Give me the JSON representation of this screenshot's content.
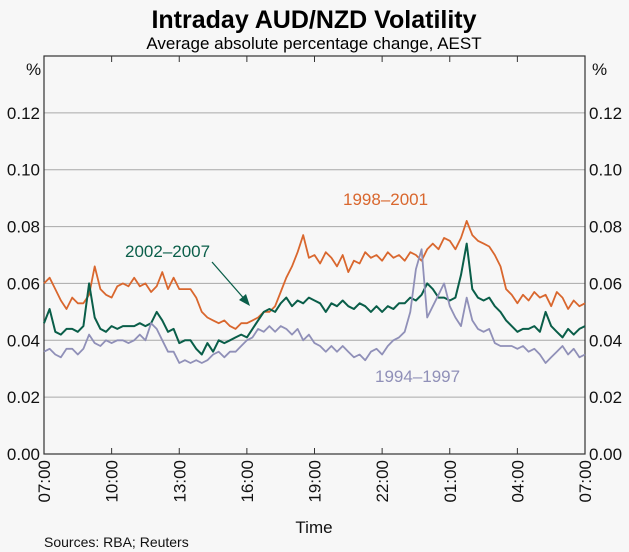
{
  "chart_data": {
    "type": "line",
    "title": "Intraday AUD/NZD Volatility",
    "subtitle": "Average absolute percentage change, AEST",
    "xlabel": "Time",
    "ylabel_left": "%",
    "ylabel_right": "%",
    "source": "Sources: RBA; Reuters",
    "ylim": [
      0,
      0.14
    ],
    "yticks": [
      "0.00",
      "0.02",
      "0.04",
      "0.06",
      "0.08",
      "0.10",
      "0.12"
    ],
    "xlim": [
      0,
      24
    ],
    "xticks": [
      "07:00",
      "10:00",
      "13:00",
      "16:00",
      "19:00",
      "22:00",
      "01:00",
      "04:00",
      "07:00"
    ],
    "grid": true,
    "colors": {
      "1998-2001": "#d9672e",
      "2002-2007": "#0a5e49",
      "1994-1997": "#9090b8",
      "grid": "#a8a8a8",
      "axis": "#333333"
    },
    "series": [
      {
        "name": "1998–2001",
        "hours": [
          0,
          0.25,
          0.5,
          0.75,
          1,
          1.25,
          1.5,
          1.75,
          2,
          2.25,
          2.5,
          2.75,
          3,
          3.25,
          3.5,
          3.75,
          4,
          4.25,
          4.5,
          4.75,
          5,
          5.25,
          5.5,
          5.75,
          6,
          6.25,
          6.5,
          6.75,
          7,
          7.25,
          7.5,
          7.75,
          8,
          8.25,
          8.5,
          8.75,
          9,
          9.25,
          9.5,
          9.75,
          10,
          10.25,
          10.5,
          10.75,
          11,
          11.25,
          11.5,
          11.75,
          12,
          12.25,
          12.5,
          12.75,
          13,
          13.25,
          13.5,
          13.75,
          14,
          14.25,
          14.5,
          14.75,
          15,
          15.25,
          15.5,
          15.75,
          16,
          16.25,
          16.5,
          16.75,
          17,
          17.25,
          17.5,
          17.75,
          18,
          18.25,
          18.5,
          18.75,
          19,
          19.25,
          19.5,
          19.75,
          20,
          20.25,
          20.5,
          20.75,
          21,
          21.25,
          21.5,
          21.75,
          22,
          22.25,
          22.5,
          22.75,
          23,
          23.25,
          23.5,
          23.75,
          24
        ],
        "values": [
          0.06,
          0.062,
          0.058,
          0.054,
          0.051,
          0.055,
          0.053,
          0.053,
          0.056,
          0.066,
          0.058,
          0.056,
          0.055,
          0.059,
          0.06,
          0.059,
          0.062,
          0.059,
          0.06,
          0.057,
          0.059,
          0.064,
          0.058,
          0.062,
          0.058,
          0.058,
          0.058,
          0.055,
          0.05,
          0.048,
          0.047,
          0.046,
          0.047,
          0.045,
          0.044,
          0.046,
          0.046,
          0.047,
          0.048,
          0.05,
          0.05,
          0.052,
          0.057,
          0.062,
          0.066,
          0.071,
          0.077,
          0.069,
          0.07,
          0.067,
          0.071,
          0.069,
          0.066,
          0.07,
          0.064,
          0.068,
          0.067,
          0.071,
          0.069,
          0.07,
          0.068,
          0.071,
          0.069,
          0.07,
          0.068,
          0.071,
          0.07,
          0.068,
          0.072,
          0.074,
          0.072,
          0.076,
          0.075,
          0.072,
          0.076,
          0.082,
          0.077,
          0.075,
          0.074,
          0.073,
          0.07,
          0.066,
          0.058,
          0.056,
          0.053,
          0.056,
          0.054,
          0.057,
          0.055,
          0.056,
          0.052,
          0.057,
          0.055,
          0.051,
          0.054,
          0.052,
          0.053
        ],
        "label_pos_hours": 15.9,
        "label_pos_value": 0.086
      },
      {
        "name": "2002–2007",
        "hours": [
          0,
          0.25,
          0.5,
          0.75,
          1,
          1.25,
          1.5,
          1.75,
          2,
          2.25,
          2.5,
          2.75,
          3,
          3.25,
          3.5,
          3.75,
          4,
          4.25,
          4.5,
          4.75,
          5,
          5.25,
          5.5,
          5.75,
          6,
          6.25,
          6.5,
          6.75,
          7,
          7.25,
          7.5,
          7.75,
          8,
          8.25,
          8.5,
          8.75,
          9,
          9.25,
          9.5,
          9.75,
          10,
          10.25,
          10.5,
          10.75,
          11,
          11.25,
          11.5,
          11.75,
          12,
          12.25,
          12.5,
          12.75,
          13,
          13.25,
          13.5,
          13.75,
          14,
          14.25,
          14.5,
          14.75,
          15,
          15.25,
          15.5,
          15.75,
          16,
          16.25,
          16.5,
          16.75,
          17,
          17.25,
          17.5,
          17.75,
          18,
          18.25,
          18.5,
          18.75,
          19,
          19.25,
          19.5,
          19.75,
          20,
          20.25,
          20.5,
          20.75,
          21,
          21.25,
          21.5,
          21.75,
          22,
          22.25,
          22.5,
          22.75,
          23,
          23.25,
          23.5,
          23.75,
          24
        ],
        "values": [
          0.046,
          0.051,
          0.043,
          0.042,
          0.044,
          0.044,
          0.043,
          0.045,
          0.06,
          0.048,
          0.044,
          0.043,
          0.045,
          0.044,
          0.045,
          0.045,
          0.045,
          0.046,
          0.045,
          0.046,
          0.05,
          0.047,
          0.043,
          0.044,
          0.039,
          0.04,
          0.04,
          0.037,
          0.035,
          0.039,
          0.036,
          0.04,
          0.039,
          0.04,
          0.041,
          0.042,
          0.041,
          0.044,
          0.047,
          0.05,
          0.051,
          0.05,
          0.053,
          0.055,
          0.052,
          0.054,
          0.053,
          0.055,
          0.054,
          0.053,
          0.05,
          0.053,
          0.052,
          0.054,
          0.052,
          0.051,
          0.053,
          0.052,
          0.05,
          0.052,
          0.05,
          0.052,
          0.051,
          0.053,
          0.053,
          0.055,
          0.054,
          0.056,
          0.06,
          0.058,
          0.055,
          0.055,
          0.054,
          0.055,
          0.063,
          0.074,
          0.058,
          0.055,
          0.054,
          0.055,
          0.052,
          0.05,
          0.047,
          0.045,
          0.043,
          0.044,
          0.044,
          0.045,
          0.043,
          0.05,
          0.045,
          0.043,
          0.041,
          0.044,
          0.042,
          0.044,
          0.045
        ],
        "label_pos_hours": 3.4,
        "label_pos_value": 0.071
      },
      {
        "name": "1994–1997",
        "hours": [
          0,
          0.25,
          0.5,
          0.75,
          1,
          1.25,
          1.5,
          1.75,
          2,
          2.25,
          2.5,
          2.75,
          3,
          3.25,
          3.5,
          3.75,
          4,
          4.25,
          4.5,
          4.75,
          5,
          5.25,
          5.5,
          5.75,
          6,
          6.25,
          6.5,
          6.75,
          7,
          7.25,
          7.5,
          7.75,
          8,
          8.25,
          8.5,
          8.75,
          9,
          9.25,
          9.5,
          9.75,
          10,
          10.25,
          10.5,
          10.75,
          11,
          11.25,
          11.5,
          11.75,
          12,
          12.25,
          12.5,
          12.75,
          13,
          13.25,
          13.5,
          13.75,
          14,
          14.25,
          14.5,
          14.75,
          15,
          15.25,
          15.5,
          15.75,
          16,
          16.25,
          16.5,
          16.75,
          17,
          17.25,
          17.5,
          17.75,
          18,
          18.25,
          18.5,
          18.75,
          19,
          19.25,
          19.5,
          19.75,
          20,
          20.25,
          20.5,
          20.75,
          21,
          21.25,
          21.5,
          21.75,
          22,
          22.25,
          22.5,
          22.75,
          23,
          23.25,
          23.5,
          23.75,
          24
        ],
        "values": [
          0.036,
          0.037,
          0.035,
          0.034,
          0.037,
          0.037,
          0.035,
          0.037,
          0.042,
          0.039,
          0.038,
          0.04,
          0.039,
          0.04,
          0.04,
          0.039,
          0.04,
          0.042,
          0.04,
          0.046,
          0.044,
          0.04,
          0.036,
          0.036,
          0.032,
          0.033,
          0.032,
          0.033,
          0.032,
          0.033,
          0.035,
          0.036,
          0.034,
          0.036,
          0.036,
          0.038,
          0.04,
          0.041,
          0.044,
          0.043,
          0.045,
          0.043,
          0.045,
          0.044,
          0.042,
          0.044,
          0.04,
          0.042,
          0.039,
          0.038,
          0.036,
          0.038,
          0.036,
          0.038,
          0.036,
          0.034,
          0.035,
          0.033,
          0.036,
          0.037,
          0.035,
          0.038,
          0.04,
          0.041,
          0.043,
          0.05,
          0.065,
          0.072,
          0.048,
          0.052,
          0.056,
          0.06,
          0.052,
          0.048,
          0.045,
          0.055,
          0.047,
          0.044,
          0.043,
          0.044,
          0.039,
          0.038,
          0.038,
          0.038,
          0.037,
          0.038,
          0.036,
          0.037,
          0.035,
          0.032,
          0.034,
          0.036,
          0.038,
          0.035,
          0.037,
          0.034,
          0.035
        ],
        "label_pos_hours": 14.5,
        "label_pos_value": 0.031
      }
    ]
  }
}
